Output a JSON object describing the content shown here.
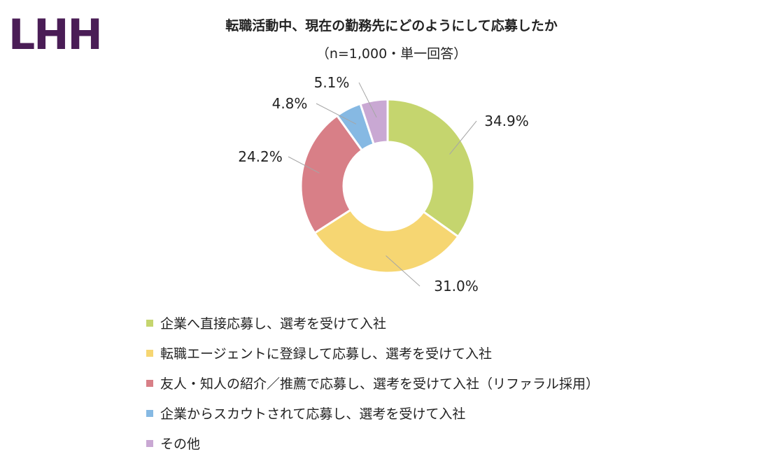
{
  "logo": "LHH",
  "chart_data": {
    "type": "pie",
    "subtype": "donut",
    "title": "転職活動中、現在の勤務先にどのようにして応募したか",
    "subtitle": "（n=1,000・単一回答）",
    "categories": [
      "企業へ直接応募し、選考を受けて入社",
      "転職エージェントに登録して応募し、選考を受けて入社",
      "友人・知人の紹介／推薦で応募し、選考を受けて入社（リファラル採用）",
      "企業からスカウトされて応募し、選考を受けて入社",
      "その他"
    ],
    "values": [
      34.9,
      31.0,
      24.2,
      4.8,
      5.1
    ],
    "data_labels": [
      "34.9%",
      "31.0%",
      "24.2%",
      "4.8%",
      "5.1%"
    ],
    "colors": [
      "#c5d56e",
      "#f6d672",
      "#d87f87",
      "#86b9e3",
      "#c9a8d3"
    ],
    "legend_position": "bottom-left"
  }
}
